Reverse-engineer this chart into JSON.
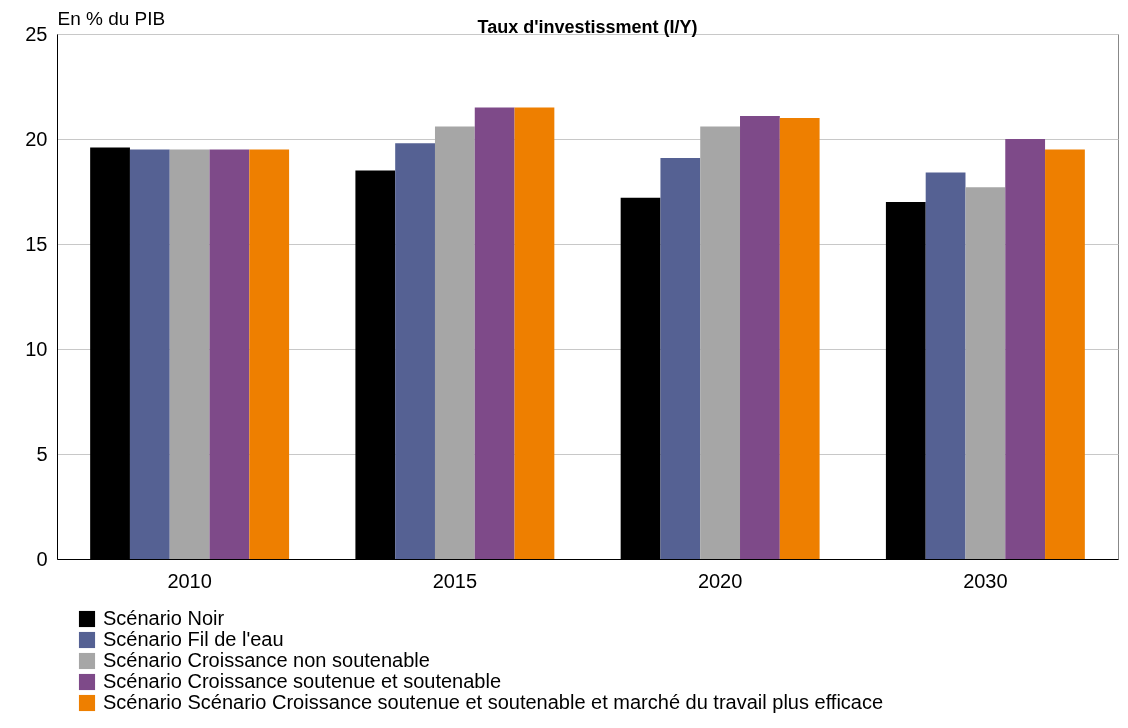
{
  "chart_data": {
    "type": "bar",
    "title": "Taux d'investissment (I/Y)",
    "ylabel": "En % du PIB",
    "categories": [
      "2010",
      "2015",
      "2020",
      "2030"
    ],
    "series": [
      {
        "name": "Scénario Noir",
        "color": "#000000",
        "values": [
          19.6,
          18.5,
          17.2,
          17.0
        ]
      },
      {
        "name": "Scénario Fil de l'eau",
        "color": "#556193",
        "values": [
          19.5,
          19.8,
          19.1,
          18.4
        ]
      },
      {
        "name": "Scénario Croissance non soutenable",
        "color": "#a6a6a6",
        "values": [
          19.5,
          20.6,
          20.6,
          17.7
        ]
      },
      {
        "name": "Scénario Croissance soutenue et soutenable",
        "color": "#7e4a89",
        "values": [
          19.5,
          21.5,
          21.1,
          20.0
        ]
      },
      {
        "name": "Scénario Scénario Croissance soutenue et soutenable et marché du travail plus efficace",
        "color": "#ee7f00",
        "values": [
          19.5,
          21.5,
          21.0,
          19.5
        ]
      }
    ],
    "ylim": [
      0,
      25
    ],
    "yticks": [
      0,
      5,
      10,
      15,
      20,
      25
    ],
    "grid": "y",
    "legend": "bottom"
  }
}
